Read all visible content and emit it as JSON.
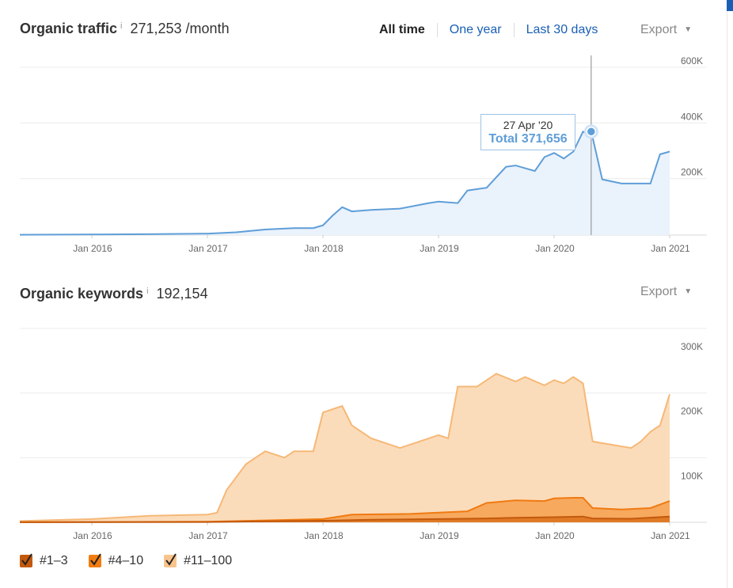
{
  "traffic": {
    "title": "Organic traffic",
    "info": "i",
    "value": "271,253 /month",
    "tabs": [
      "All time",
      "One year",
      "Last 30 days"
    ],
    "export": "Export",
    "tooltip": {
      "date": "27 Apr '20",
      "total": "Total 371,656"
    }
  },
  "keywords": {
    "title": "Organic keywords",
    "info": "i",
    "value": "192,154",
    "export": "Export"
  },
  "legend": [
    "#1–3",
    "#4–10",
    "#11–100"
  ],
  "colors": {
    "traffic_line": "#5f9ed8",
    "traffic_fill": "#eaf2fc",
    "k1_3": "#c3590c",
    "k4_10": "#f27c10",
    "k11_100": "#f8c48c",
    "link": "#1a5fb4"
  },
  "chart_data": [
    {
      "type": "line",
      "title": "Organic traffic",
      "x_ticks": [
        "Jan 2016",
        "Jan 2017",
        "Jan 2018",
        "Jan 2019",
        "Jan 2020",
        "Jan 2021"
      ],
      "y_ticks": [
        "200K",
        "400K",
        "600K"
      ],
      "ylim": [
        0,
        600000
      ],
      "grid": true,
      "series": [
        {
          "x": [
            "2015-05",
            "2016-01",
            "2016-07",
            "2017-01",
            "2017-04",
            "2017-07",
            "2017-10",
            "2017-12",
            "2018-01",
            "2018-02",
            "2018-03",
            "2018-04",
            "2018-06",
            "2018-09",
            "2018-12",
            "2019-01",
            "2019-03",
            "2019-04",
            "2019-06",
            "2019-08",
            "2019-09",
            "2019-11",
            "2019-12",
            "2020-01",
            "2020-02",
            "2020-03",
            "2020-04",
            "2020-05",
            "2020-06",
            "2020-08",
            "2020-10",
            "2020-11",
            "2020-12",
            "2021-01"
          ],
          "values": [
            1000,
            2000,
            3000,
            5000,
            10000,
            20000,
            25000,
            25000,
            35000,
            70000,
            100000,
            85000,
            90000,
            95000,
            115000,
            120000,
            115000,
            160000,
            170000,
            245000,
            250000,
            230000,
            280000,
            295000,
            275000,
            300000,
            371656,
            350000,
            200000,
            185000,
            185000,
            185000,
            290000,
            300000
          ]
        }
      ]
    },
    {
      "type": "area",
      "title": "Organic keywords",
      "x_ticks": [
        "Jan 2016",
        "Jan 2017",
        "Jan 2018",
        "Jan 2019",
        "Jan 2020",
        "Jan 2021"
      ],
      "y_ticks": [
        "100K",
        "200K",
        "300K"
      ],
      "ylim": [
        0,
        300000
      ],
      "grid": true,
      "series": [
        {
          "name": "#11–100",
          "x": [
            "2015-05",
            "2016-01",
            "2016-07",
            "2017-01",
            "2017-02",
            "2017-03",
            "2017-05",
            "2017-07",
            "2017-09",
            "2017-10",
            "2017-12",
            "2018-01",
            "2018-03",
            "2018-04",
            "2018-06",
            "2018-09",
            "2018-11",
            "2019-01",
            "2019-02",
            "2019-03",
            "2019-05",
            "2019-07",
            "2019-09",
            "2019-10",
            "2019-12",
            "2020-01",
            "2020-02",
            "2020-03",
            "2020-04",
            "2020-05",
            "2020-07",
            "2020-09",
            "2020-10",
            "2020-11",
            "2020-12",
            "2021-01"
          ],
          "values": [
            2000,
            5000,
            10000,
            12000,
            15000,
            50000,
            90000,
            110000,
            100000,
            110000,
            110000,
            170000,
            180000,
            150000,
            130000,
            115000,
            125000,
            135000,
            130000,
            210000,
            210000,
            230000,
            218000,
            225000,
            212000,
            220000,
            215000,
            225000,
            215000,
            125000,
            120000,
            115000,
            125000,
            140000,
            150000,
            198000
          ]
        },
        {
          "name": "#4–10",
          "x": [
            "2015-05",
            "2016-01",
            "2017-01",
            "2017-07",
            "2018-01",
            "2018-04",
            "2018-10",
            "2019-01",
            "2019-04",
            "2019-06",
            "2019-09",
            "2019-12",
            "2020-01",
            "2020-03",
            "2020-04",
            "2020-05",
            "2020-08",
            "2020-11",
            "2021-01"
          ],
          "values": [
            200,
            500,
            1000,
            3000,
            5000,
            12000,
            13000,
            15000,
            17000,
            30000,
            34000,
            33000,
            37000,
            38000,
            38000,
            22000,
            20000,
            22000,
            33000
          ]
        },
        {
          "name": "#1–3",
          "x": [
            "2015-05",
            "2016-01",
            "2017-01",
            "2017-07",
            "2018-01",
            "2018-06",
            "2019-01",
            "2019-06",
            "2019-09",
            "2020-01",
            "2020-04",
            "2020-05",
            "2020-09",
            "2021-01"
          ],
          "values": [
            100,
            200,
            500,
            1500,
            2500,
            4000,
            5000,
            6000,
            7000,
            8000,
            9000,
            6000,
            5500,
            9000
          ]
        }
      ]
    }
  ]
}
